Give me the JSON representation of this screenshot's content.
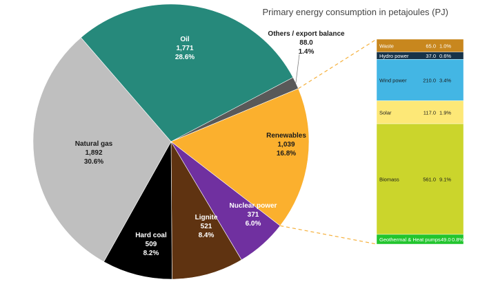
{
  "chart_data": [
    {
      "type": "pie",
      "title": "Primary energy consumption in petajoules (PJ)",
      "unit": "PJ",
      "slices": [
        {
          "name": "Oil",
          "value": 1771,
          "value_label": "1,771",
          "percent_label": "28.6%",
          "color": "#26897b"
        },
        {
          "name": "Others / export balance",
          "value": 88,
          "value_label": "88.0",
          "percent_label": "1.4%",
          "color": "#595959"
        },
        {
          "name": "Renewables",
          "value": 1039,
          "value_label": "1,039",
          "percent_label": "16.8%",
          "color": "#fbb02e"
        },
        {
          "name": "Nuclear power",
          "value": 371,
          "value_label": "371",
          "percent_label": "6.0%",
          "color": "#7030a0"
        },
        {
          "name": "Lignite",
          "value": 521,
          "value_label": "521",
          "percent_label": "8.4%",
          "color": "#5f3311"
        },
        {
          "name": "Hard coal",
          "value": 509,
          "value_label": "509",
          "percent_label": "8.2%",
          "color": "#000000"
        },
        {
          "name": "Natural gas",
          "value": 1892,
          "value_label": "1,892",
          "percent_label": "30.6%",
          "color": "#bfbfbf"
        }
      ]
    },
    {
      "type": "bar",
      "stacked": true,
      "parent": "Renewables",
      "segments": [
        {
          "name": "Waste",
          "value": 65.0,
          "value_label": "65.0",
          "percent_label": "1.0%",
          "color": "#c8871e",
          "text_color": "#ffffff"
        },
        {
          "name": "Hydro power",
          "value": 37.0,
          "value_label": "37.0",
          "percent_label": "0.6%",
          "color": "#173349",
          "text_color": "#ffffff"
        },
        {
          "name": "Wind power",
          "value": 210.0,
          "value_label": "210.0",
          "percent_label": "3.4%",
          "color": "#43b6e4",
          "text_color": "#1a1a1a"
        },
        {
          "name": "Solar",
          "value": 117.0,
          "value_label": "117.0",
          "percent_label": "1.9%",
          "color": "#fde877",
          "text_color": "#1a1a1a"
        },
        {
          "name": "Biomass",
          "value": 561.0,
          "value_label": "561.0",
          "percent_label": "9.1%",
          "color": "#cbd52c",
          "text_color": "#1a1a1a"
        },
        {
          "name": "Geothermal & Heat pumps",
          "value": 49.0,
          "value_label": "49.0",
          "percent_label": "0.8%",
          "color": "#22c52e",
          "text_color": "#ffffff"
        }
      ]
    }
  ]
}
